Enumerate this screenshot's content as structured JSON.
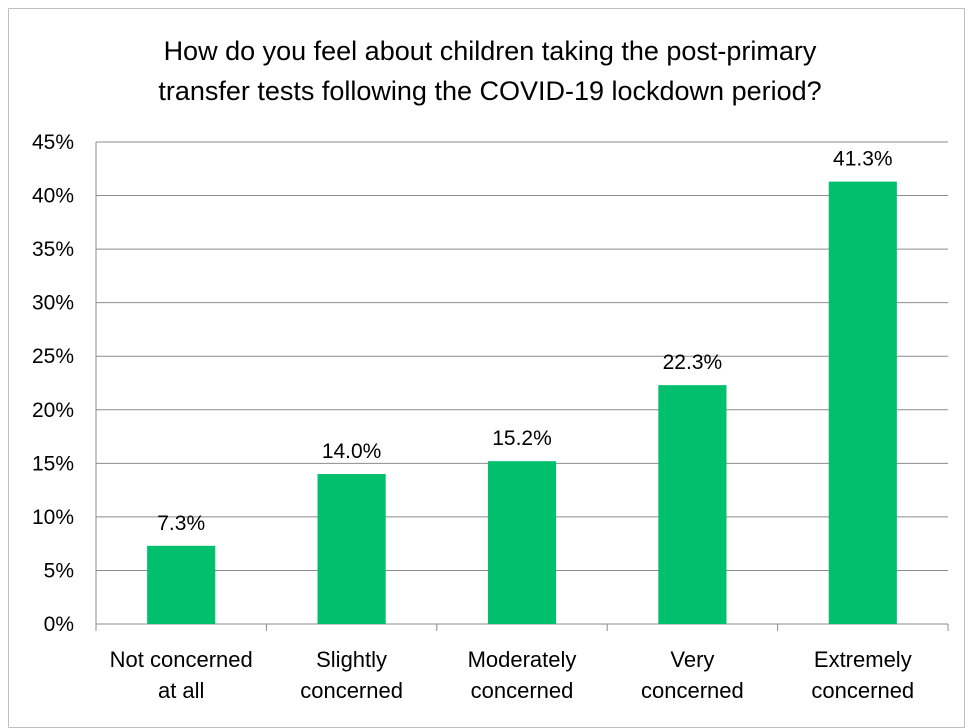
{
  "chart_data": {
    "type": "bar",
    "title_lines": [
      "How do you feel about children taking the post-primary",
      "transfer tests following the COVID-19 lockdown period?"
    ],
    "categories": [
      [
        "Not concerned",
        "at all"
      ],
      [
        "Slightly",
        "concerned"
      ],
      [
        "Moderately",
        "concerned"
      ],
      [
        "Very",
        "concerned"
      ],
      [
        "Extremely",
        "concerned"
      ]
    ],
    "values": [
      7.3,
      14.0,
      15.2,
      22.3,
      41.3
    ],
    "data_labels": [
      "7.3%",
      "14.0%",
      "15.2%",
      "22.3%",
      "41.3%"
    ],
    "yticks": [
      0,
      5,
      10,
      15,
      20,
      25,
      30,
      35,
      40,
      45
    ],
    "ytick_labels": [
      "0%",
      "5%",
      "10%",
      "15%",
      "20%",
      "25%",
      "30%",
      "35%",
      "40%",
      "45%"
    ],
    "ylim": [
      0,
      45
    ],
    "grid": true,
    "bar_color": "#00c06e",
    "gridline_color": "#8c8c8c"
  }
}
